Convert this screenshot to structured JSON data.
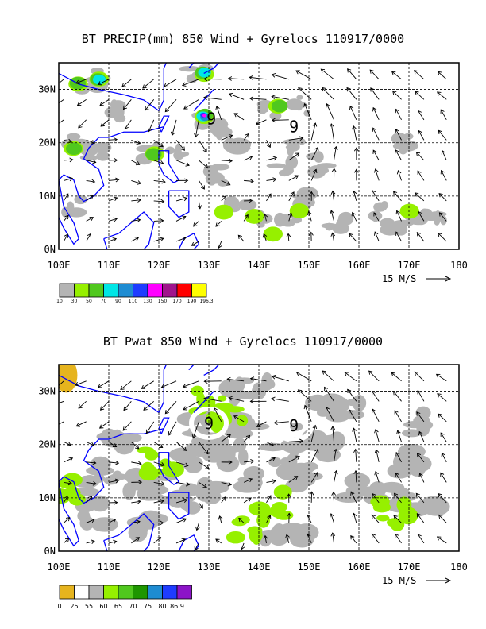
{
  "colors": {
    "precip_scale": [
      "#b4b4b4",
      "#96f000",
      "#50c81e",
      "#00e6e6",
      "#1e8cd2",
      "#1e3cff",
      "#ff00ff",
      "#a0148c",
      "#ff0000",
      "#ffff00"
    ],
    "pwat_scale": [
      "#e6b41e",
      "#ffffff",
      "#b4b4b4",
      "#96f000",
      "#50c81e",
      "#1e9600",
      "#1e8cd2",
      "#1e3cff",
      "#8c14c8"
    ],
    "coast": "#0000ff"
  },
  "chart_data": [
    {
      "type": "heatmap",
      "title": "BT PRECIP(mm) 850 Wind + Gyrelocs 110917/0000",
      "x_ticks": [
        "100E",
        "110E",
        "120E",
        "130E",
        "140E",
        "150E",
        "160E",
        "170E",
        "180"
      ],
      "y_ticks": [
        "0N",
        "10N",
        "20N",
        "30N"
      ],
      "xlim": [
        100,
        180
      ],
      "ylim": [
        0,
        35
      ],
      "grid": true,
      "vector_ref_label": "15 M/S",
      "colorbar_labels": [
        "10",
        "30",
        "50",
        "70",
        "90",
        "110",
        "130",
        "150",
        "170",
        "190",
        "196.3"
      ],
      "gyre_locations": [
        [
          130.5,
          24.5
        ],
        [
          147,
          23
        ]
      ],
      "precip_blobs": [
        {
          "lon": 104,
          "lat": 31,
          "level": 2
        },
        {
          "lon": 108,
          "lat": 32,
          "level": 3
        },
        {
          "lon": 103,
          "lat": 19,
          "level": 2
        },
        {
          "lon": 119,
          "lat": 18,
          "level": 2
        },
        {
          "lon": 129,
          "lat": 25,
          "level": 6
        },
        {
          "lon": 129,
          "lat": 33,
          "level": 3
        },
        {
          "lon": 144,
          "lat": 27,
          "level": 2
        },
        {
          "lon": 133,
          "lat": 7,
          "level": 1
        },
        {
          "lon": 139,
          "lat": 6,
          "level": 1
        },
        {
          "lon": 170,
          "lat": 7,
          "level": 1
        },
        {
          "lon": 143,
          "lat": 3,
          "level": 1
        },
        {
          "lon": 148,
          "lat": 7,
          "level": 1
        }
      ]
    },
    {
      "type": "heatmap",
      "title": "BT Pwat 850 Wind + Gyrelocs 110917/0000",
      "x_ticks": [
        "100E",
        "110E",
        "120E",
        "130E",
        "140E",
        "150E",
        "160E",
        "170E",
        "180"
      ],
      "y_ticks": [
        "0N",
        "10N",
        "20N",
        "30N"
      ],
      "xlim": [
        100,
        180
      ],
      "ylim": [
        0,
        35
      ],
      "grid": true,
      "vector_ref_label": "15 M/S",
      "colorbar_labels": [
        "0",
        "25",
        "55",
        "60",
        "65",
        "70",
        "75",
        "80",
        "86.9"
      ],
      "gyre_locations": [
        [
          130,
          24
        ],
        [
          147,
          23.5
        ]
      ],
      "pwat_regions": [
        {
          "lon": 134,
          "lat": 25,
          "level": 3
        },
        {
          "lon": 130,
          "lat": 28,
          "level": 3
        },
        {
          "lon": 120,
          "lat": 17,
          "level": 3
        },
        {
          "lon": 143,
          "lat": 9,
          "level": 3
        },
        {
          "lon": 138,
          "lat": 4,
          "level": 3
        },
        {
          "lon": 101,
          "lat": 11,
          "level": 3
        },
        {
          "lon": 167,
          "lat": 7,
          "level": 3
        }
      ]
    }
  ]
}
